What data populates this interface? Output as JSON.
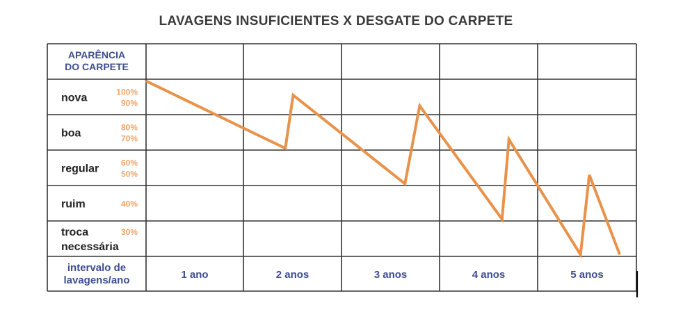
{
  "chart_data": {
    "type": "line",
    "title": "LAVAGENS INSUFICIENTES X DESGATE DO CARPETE",
    "ylabel_lines": [
      "APARÊNCIA",
      "DO CARPETE"
    ],
    "xlabel_lines": [
      "intervalo de",
      "lavagens/ano"
    ],
    "y_categories": [
      {
        "label_lines": [
          "nova"
        ],
        "percents": [
          "100%",
          "90%"
        ]
      },
      {
        "label_lines": [
          "boa"
        ],
        "percents": [
          "80%",
          "70%"
        ]
      },
      {
        "label_lines": [
          "regular"
        ],
        "percents": [
          "60%",
          "50%"
        ]
      },
      {
        "label_lines": [
          "ruim"
        ],
        "percents": [
          "40%"
        ]
      },
      {
        "label_lines": [
          "troca",
          "necessária"
        ],
        "percents": [
          "30%"
        ]
      }
    ],
    "x_categories": [
      "1 ano",
      "2 anos",
      "3 anos",
      "4 anos",
      "5 anos"
    ],
    "xlim": [
      0,
      5
    ],
    "ylim": [
      0,
      100
    ],
    "grid": true,
    "series": [
      {
        "color": "#e8924a",
        "x": [
          0,
          1.42,
          1.5,
          2.64,
          2.79,
          3.63,
          3.7,
          4.43,
          4.52,
          4.83
        ],
        "y": [
          99,
          61,
          91,
          41,
          85,
          21,
          66,
          1,
          46,
          1
        ]
      }
    ]
  }
}
